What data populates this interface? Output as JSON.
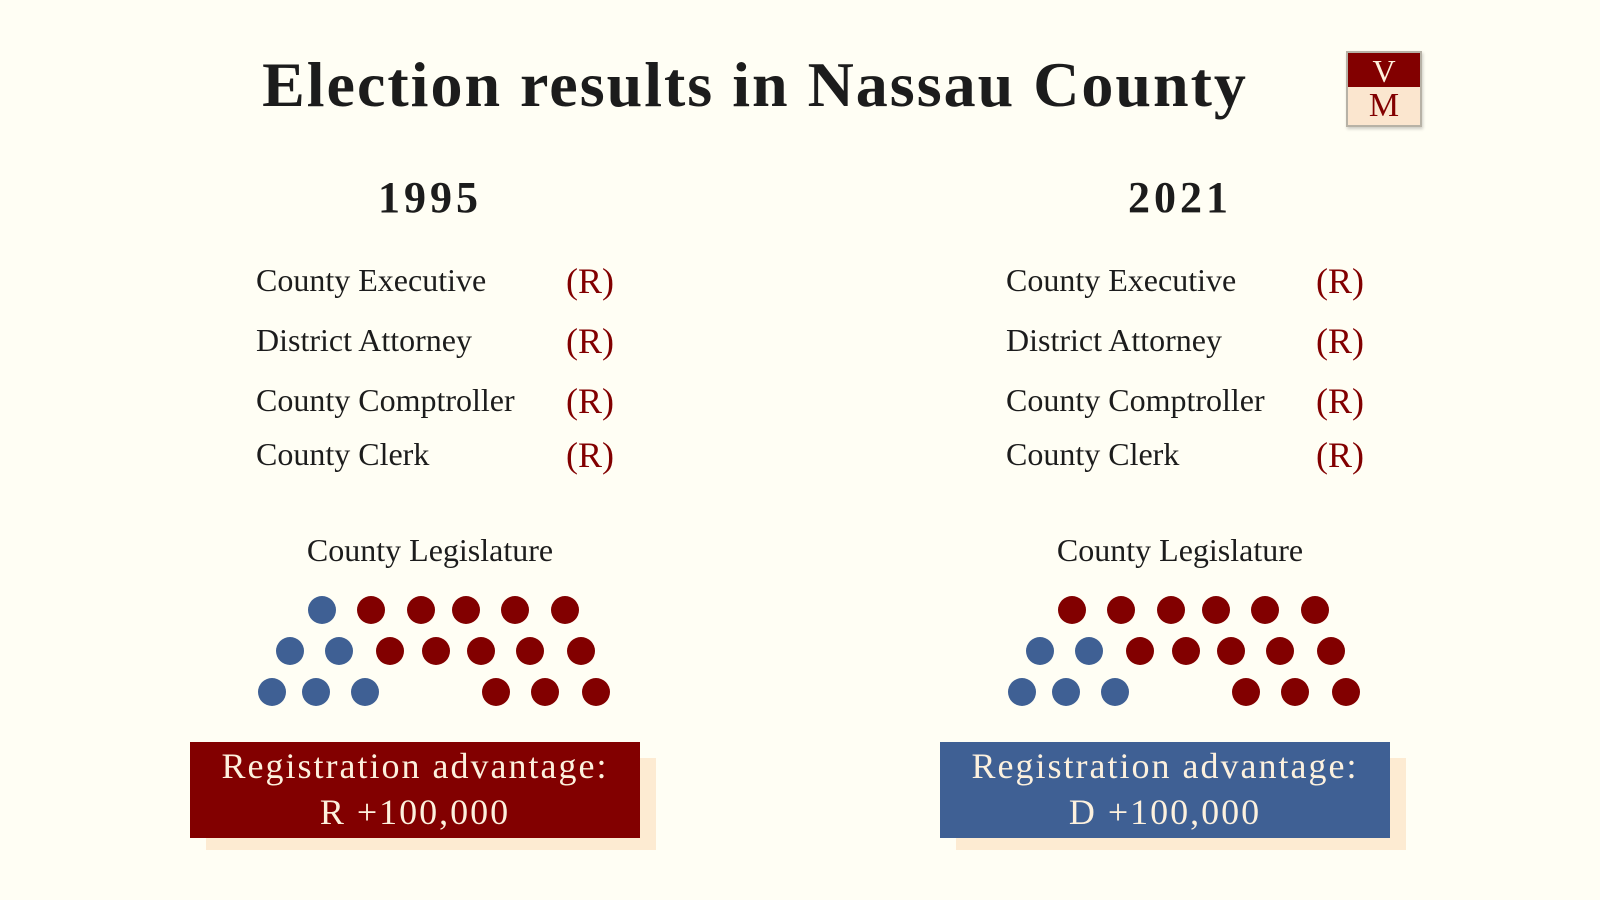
{
  "title": "Election results in Nassau County",
  "logo": {
    "top": "V",
    "bottom": "M"
  },
  "colors": {
    "republican": "#820000",
    "democrat": "#3f6094",
    "background": "#fffef4"
  },
  "columns": [
    {
      "year": "1995",
      "offices": [
        {
          "name": "County Executive",
          "party": "(R)"
        },
        {
          "name": "District Attorney",
          "party": "(R)"
        },
        {
          "name": "County Comptroller",
          "party": "(R)"
        },
        {
          "name": "County Clerk",
          "party": "(R)"
        }
      ],
      "legislature_label": "County Legislature",
      "legislature": {
        "rows": [
          {
            "democrat": 1,
            "republican": 5
          },
          {
            "democrat": 2,
            "republican": 5
          },
          {
            "democrat": 3,
            "republican": 3
          }
        ]
      },
      "registration": {
        "label": "Registration advantage:",
        "value": "R +100,000",
        "party": "R"
      }
    },
    {
      "year": "2021",
      "offices": [
        {
          "name": "County Executive",
          "party": "(R)"
        },
        {
          "name": "District Attorney",
          "party": "(R)"
        },
        {
          "name": "County Comptroller",
          "party": "(R)"
        },
        {
          "name": "County Clerk",
          "party": "(R)"
        }
      ],
      "legislature_label": "County Legislature",
      "legislature": {
        "rows": [
          {
            "democrat": 0,
            "republican": 6
          },
          {
            "democrat": 2,
            "republican": 5
          },
          {
            "democrat": 3,
            "republican": 3
          }
        ]
      },
      "registration": {
        "label": "Registration advantage:",
        "value": "D +100,000",
        "party": "D"
      }
    }
  ]
}
